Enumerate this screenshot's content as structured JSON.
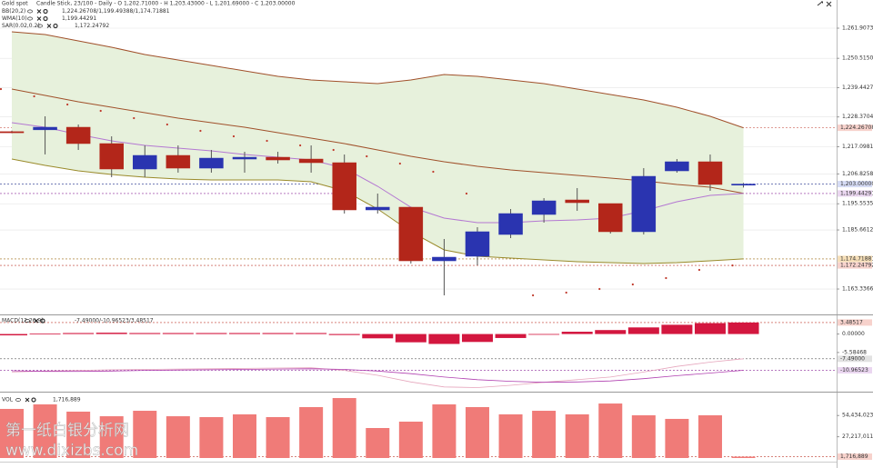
{
  "watermark": [
    "第一纸白银分析网",
    "www.dixizbs.com"
  ],
  "chart_data": [
    {
      "type": "candlestick",
      "title": "Gold spot",
      "subtitle": "Candle Stick, 23/100 - Daily - O 1,202.71000 - H 1,203.43000 - L 1,201.69000 - C 1,203.00000",
      "categories": [
        null,
        null,
        null,
        null,
        null,
        null,
        null,
        null,
        null,
        null,
        null,
        null,
        null,
        null,
        null,
        null,
        null,
        null,
        null,
        null,
        null,
        null,
        null
      ],
      "open": [
        1222.8,
        1223.5,
        1224.48,
        1218.3,
        1208.68,
        1213.83,
        1209.02,
        1212.45,
        1213.14,
        1212.45,
        1211.08,
        1193.23,
        1194.26,
        1173.99,
        1175.71,
        1183.95,
        1191.51,
        1197.0,
        1195.63,
        1184.99,
        1207.99,
        1211.43,
        1202.71
      ],
      "high": [
        1223.2,
        1228.6,
        1225.51,
        1221.04,
        1217.61,
        1217.61,
        1215.89,
        1215.2,
        1215.2,
        1217.61,
        1214.17,
        1199.41,
        1194.26,
        1182.24,
        1186.7,
        1193.57,
        1197.69,
        1201.47,
        1195.63,
        1209.02,
        1212.46,
        1214.17,
        1203.43
      ],
      "low": [
        1222.2,
        1214.2,
        1215.89,
        1205.59,
        1205.59,
        1207.31,
        1207.31,
        1207.31,
        1210.74,
        1207.31,
        1191.85,
        1191.85,
        1172.97,
        1160.94,
        1172.28,
        1182.58,
        1188.42,
        1192.88,
        1184.3,
        1183.95,
        1207.31,
        1200.44,
        1201.69
      ],
      "close": [
        1222.6,
        1224.48,
        1218.3,
        1208.68,
        1213.83,
        1209.02,
        1212.8,
        1213.14,
        1212.11,
        1211.08,
        1193.23,
        1194.26,
        1173.99,
        1175.37,
        1184.99,
        1191.85,
        1196.66,
        1195.97,
        1184.99,
        1205.93,
        1211.43,
        1202.84,
        1203.0
      ],
      "up_color": "#2a34b0",
      "down_color": "#b3261a",
      "indicators": [
        {
          "name": "BB(20,2)",
          "value_label": "1,224.26708/1,199.49388/1,174.71881",
          "color": "#a0502a",
          "lower_color": "#9a8a2a",
          "fill": "#e7f1dc",
          "bands": {
            "upper": [
              1260.54,
              1259.51,
              1257.1,
              1254.7,
              1251.95,
              1249.89,
              1247.83,
              1245.77,
              1243.71,
              1242.34,
              1241.65,
              1240.96,
              1242.34,
              1244.4,
              1243.71,
              1242.34,
              1240.96,
              1238.9,
              1236.84,
              1234.78,
              1232.03,
              1228.6,
              1224.27
            ],
            "middle": [
              1238.9,
              1236.5,
              1234.09,
              1232.03,
              1229.97,
              1227.91,
              1226.2,
              1224.48,
              1222.42,
              1220.36,
              1218.3,
              1215.89,
              1213.49,
              1211.43,
              1209.71,
              1208.34,
              1207.31,
              1206.28,
              1205.25,
              1204.22,
              1202.85,
              1201.81,
              1199.49
            ],
            "lower": [
              1212.46,
              1210.06,
              1208.0,
              1206.62,
              1205.59,
              1204.91,
              1204.56,
              1204.56,
              1204.56,
              1203.88,
              1200.44,
              1193.57,
              1184.99,
              1178.12,
              1175.72,
              1175.03,
              1174.34,
              1173.66,
              1173.31,
              1172.97,
              1173.31,
              1174.0,
              1174.72
            ]
          }
        },
        {
          "name": "WMA(10)",
          "value_label": "1,199.44291",
          "color": "#b478d2",
          "values": [
            1226.2,
            1224.48,
            1221.73,
            1219.33,
            1217.61,
            1216.58,
            1215.55,
            1214.18,
            1213.15,
            1212.12,
            1209.03,
            1202.16,
            1194.26,
            1190.14,
            1188.42,
            1188.42,
            1189.11,
            1189.45,
            1190.14,
            1192.89,
            1196.32,
            1198.72,
            1199.44
          ]
        },
        {
          "name": "SAR(0.02,0.2)",
          "value_label": "1,172.24792",
          "color": "#c0392b",
          "values": [
            1238.9,
            1236.15,
            1233.06,
            1230.66,
            1227.91,
            1225.51,
            1223.11,
            1221.05,
            1219.33,
            1217.61,
            1215.89,
            1213.49,
            1210.74,
            1207.65,
            1199.41,
            null,
            1160.95,
            1161.98,
            1163.35,
            1165.07,
            1167.47,
            1170.57,
            1172.25
          ]
        }
      ],
      "ylim": [
        1154.08,
        1269.81
      ],
      "yticks": [
        {
          "value": 1261.90738,
          "label": "1,261.90738"
        },
        {
          "value": 1250.51507,
          "label": "1,250.51507"
        },
        {
          "value": 1239.44277,
          "label": "1,239.44277"
        },
        {
          "value": 1228.37046,
          "label": "1,228.37046"
        },
        {
          "value": 1217.09816,
          "label": "1,217.09816"
        },
        {
          "value": 1206.82585,
          "label": "1,206.82585"
        },
        {
          "value": 1195.55355,
          "label": "1,195.55355"
        },
        {
          "value": 1185.66124,
          "label": "1,185.66124"
        },
        {
          "value": 1163.33663,
          "label": "1,163.33663"
        }
      ],
      "grid": true,
      "markers": [
        {
          "value": 1224.26708,
          "label": "1,224.26708",
          "color": "#c0392b",
          "bg": "#f7d2cc"
        },
        {
          "value": 1203.0,
          "label": "1,203.00000",
          "color": "#1f2f8a",
          "bg": "#d6dcf5"
        },
        {
          "value": 1199.44291,
          "label": "1,199.44291",
          "color": "#8a2a9a",
          "bg": "#ead6f0"
        },
        {
          "value": 1174.71881,
          "label": "1,174.71881",
          "color": "#9a6a10",
          "bg": "#f6dfb8"
        },
        {
          "value": 1172.24792,
          "label": "1,172.24792",
          "color": "#c0392b",
          "bg": "#f7d2cc"
        }
      ]
    },
    {
      "type": "macd",
      "title": "MACD(12,26,9)",
      "value_label": "-7.49000/-10.96523/3.48517",
      "series": [
        {
          "color": "#d3173f",
          "values": [
            -0.4,
            0.1,
            0.3,
            0.4,
            0.3,
            0.3,
            0.3,
            0.3,
            0.3,
            0.3,
            -0.3,
            -1.3,
            -2.5,
            -3.0,
            -2.4,
            -1.2,
            0,
            0.7,
            1.2,
            2.0,
            2.8,
            3.3,
            3.48517
          ]
        },
        {
          "color": "#e6a6bd",
          "values": [
            -11.5,
            -11.2,
            -11.0,
            -10.8,
            -10.7,
            -10.6,
            -10.5,
            -10.4,
            -10.3,
            -10.2,
            -11.0,
            -12.5,
            -14.5,
            -16.0,
            -16.2,
            -15.5,
            -14.6,
            -13.8,
            -13.0,
            -11.5,
            -9.8,
            -8.5,
            -7.49
          ]
        },
        {
          "color": "#b040b0",
          "values": [
            -11.1,
            -11.3,
            -11.3,
            -11.2,
            -11.0,
            -10.9,
            -10.8,
            -10.7,
            -10.6,
            -10.5,
            -10.7,
            -11.2,
            -12.0,
            -13.0,
            -13.8,
            -14.3,
            -14.6,
            -14.5,
            -14.2,
            -13.5,
            -12.6,
            -11.8,
            -10.96523
          ]
        }
      ],
      "ylim": [
        -17.16,
        4.83
      ],
      "yticks": [
        {
          "value": 0,
          "label": "0.00000"
        },
        {
          "value": -5.58468,
          "label": "-5.58468"
        }
      ],
      "markers": [
        {
          "value": 3.48517,
          "label": "3.48517",
          "color": "#c0392b",
          "bg": "#f7d2cc"
        },
        {
          "value": -7.49,
          "label": "-7.49000",
          "color": "#555555",
          "bg": "#e2e2e2"
        },
        {
          "value": -10.96523,
          "label": "-10.96523",
          "color": "#8a2a9a",
          "bg": "#ead6f0"
        }
      ]
    },
    {
      "type": "bar",
      "title": "VOL",
      "value_label": "1,716,889",
      "color": "#f07b78",
      "values": [
        62900000,
        68700000,
        59400000,
        53500000,
        60500000,
        53500000,
        52400000,
        55900000,
        52400000,
        65200000,
        76800000,
        38400000,
        46600000,
        68700000,
        65200000,
        55900000,
        60500000,
        55900000,
        69800000,
        54700000,
        50100000,
        54700000,
        1716889
      ],
      "ylim": [
        0,
        78000000
      ],
      "yticks": [
        {
          "value": 54434023,
          "label": "54,434,023"
        },
        {
          "value": 27217011,
          "label": "27,217,011"
        }
      ],
      "markers": [
        {
          "value": 1716889,
          "label": "1,716,889",
          "color": "#c0392b",
          "bg": "#f7d2cc"
        }
      ]
    }
  ]
}
